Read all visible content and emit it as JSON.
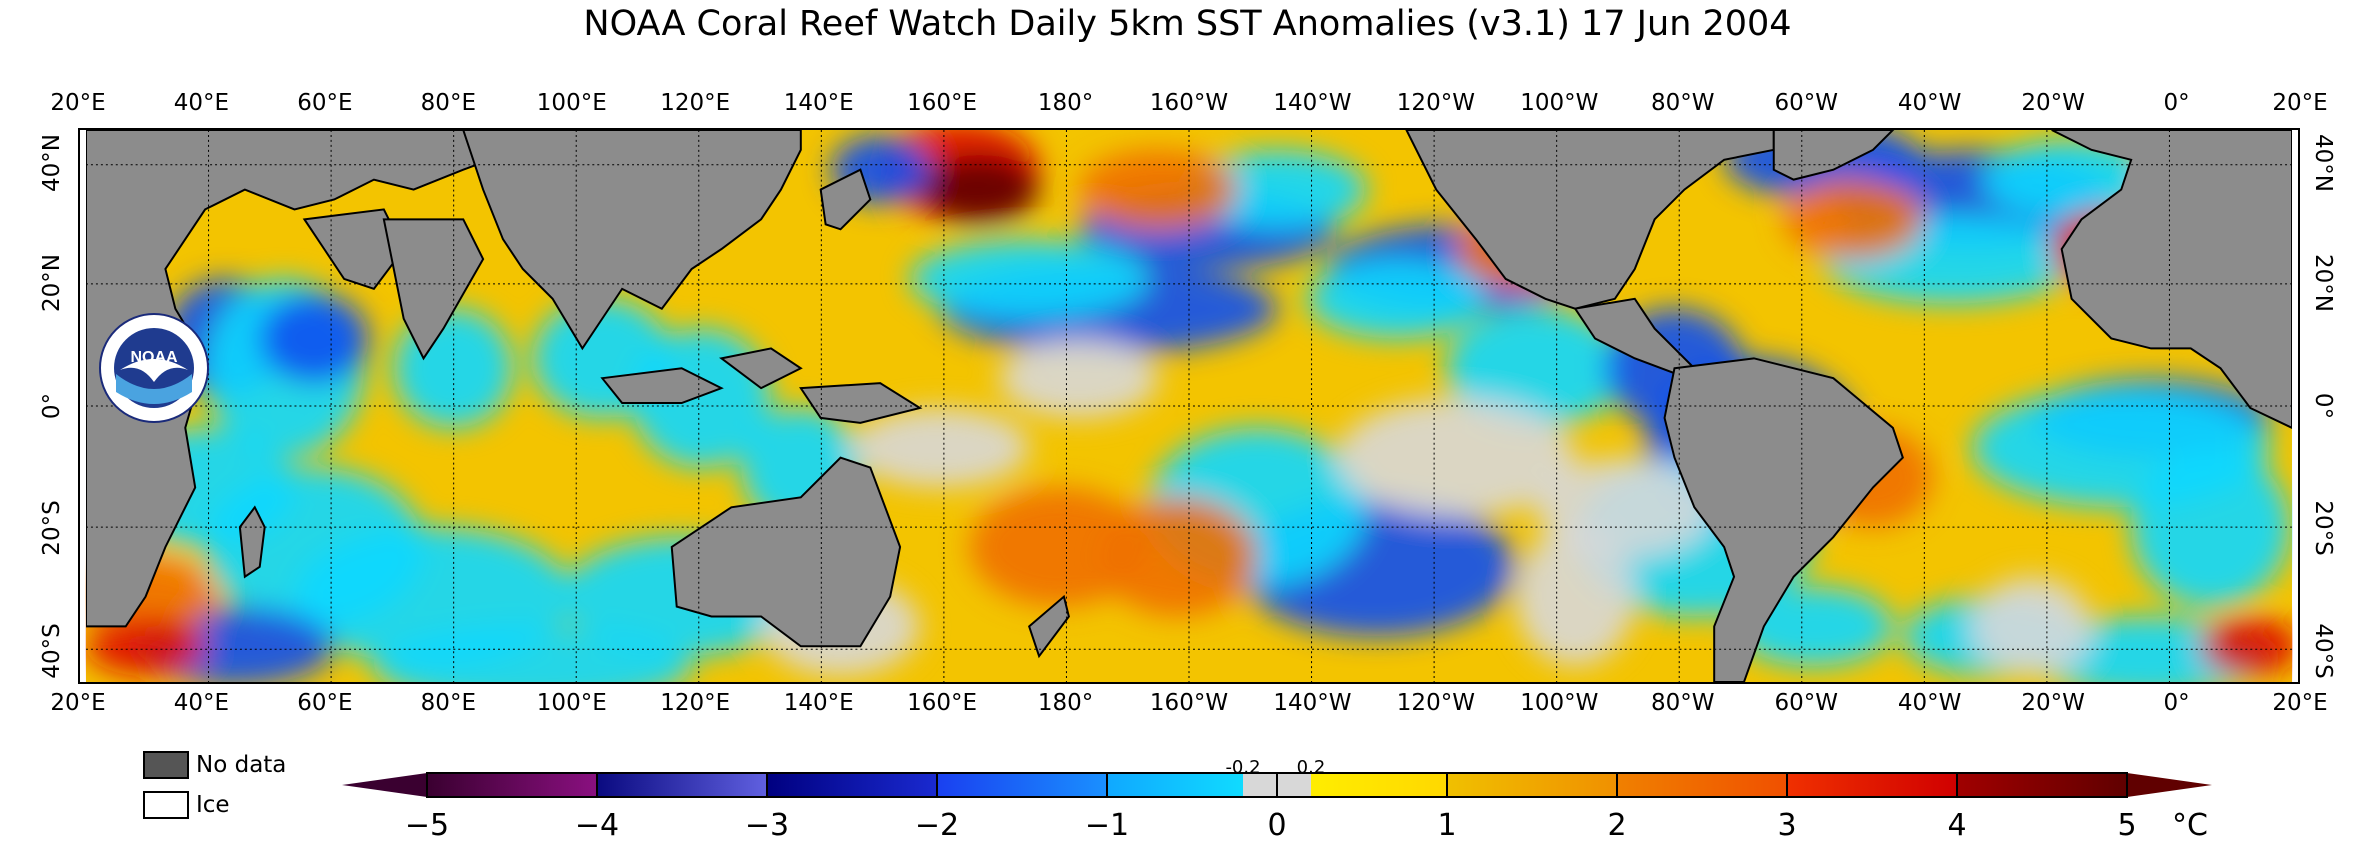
{
  "title": "NOAA Coral Reef Watch Daily 5km SST Anomalies  (v3.1)   17 Jun 2004",
  "longitude_labels": [
    "20°E",
    "40°E",
    "60°E",
    "80°E",
    "100°E",
    "120°E",
    "140°E",
    "160°E",
    "180°",
    "160°W",
    "140°W",
    "120°W",
    "100°W",
    "80°W",
    "60°W",
    "40°W",
    "20°W",
    "0°",
    "20°E"
  ],
  "latitude_labels": [
    "40°N",
    "20°N",
    "0°",
    "20°S",
    "40°S"
  ],
  "legend": {
    "no_data": "No data",
    "ice": "Ice"
  },
  "colorbar": {
    "labels": [
      "−5",
      "−4",
      "−3",
      "−2",
      "−1",
      "0",
      "1",
      "2",
      "3",
      "4",
      "5"
    ],
    "small_labels": [
      "-0.2",
      "0.2"
    ],
    "unit": "°C",
    "colors": {
      "deep_purple": "#3a0030",
      "purple": "#8a1080",
      "navy": "#0a0a80",
      "blue": "#1050f0",
      "cyan": "#10d8ff",
      "neutral": "#d8d8d8",
      "yellow": "#fff200",
      "gold": "#f0b000",
      "orange": "#f07000",
      "red": "#e01000",
      "dark_red": "#600000"
    }
  },
  "map_colors": {
    "land": "#8c8c8c",
    "no_data": "#555555",
    "ocean_base": "#f3c400"
  },
  "logo": {
    "name": "NOAA"
  }
}
